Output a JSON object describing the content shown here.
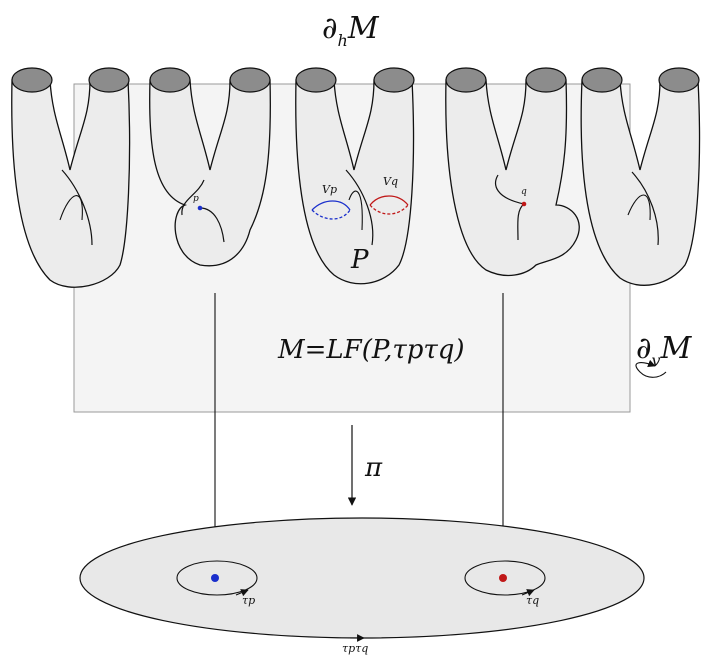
{
  "labels": {
    "top_boundary": "∂hM",
    "formula": "M=LF(P,τpτq)",
    "side_boundary": "∂vM",
    "projection": "π",
    "page": "P",
    "point_p": "p",
    "point_q": "q",
    "curve_vp": "Vp",
    "curve_vq": "Vq",
    "tau_p": "τp",
    "tau_q": "τq",
    "tau_pq": "τpτq"
  },
  "colors": {
    "blue": "#1a2fcc",
    "red": "#c01818",
    "fiber_fill": "#ececec",
    "slab_fill": "#f4f4f4",
    "cap_fill": "#8c8c8c",
    "base_fill": "#e8e8e8",
    "stroke": "#111111"
  }
}
